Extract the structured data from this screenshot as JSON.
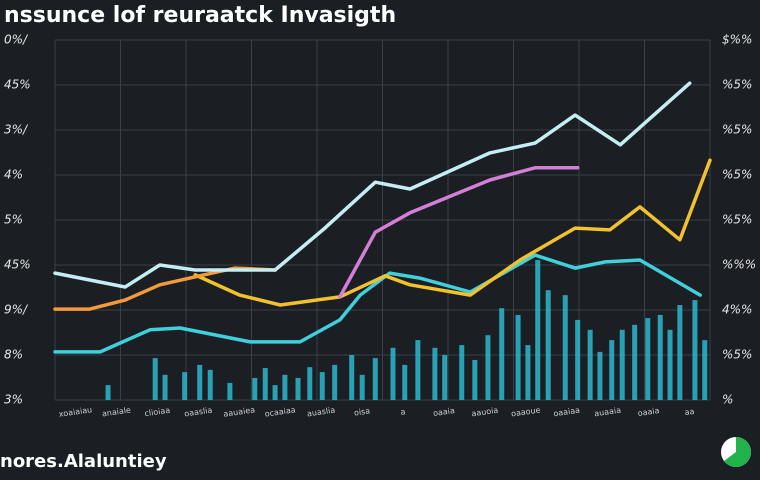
{
  "chart_data": {
    "type": "line",
    "title": "nssunce lof reuraatck Invasigth",
    "footer": "nores.Alaluntiey",
    "xlim": [
      0,
      100
    ],
    "ylim": [
      0,
      80
    ],
    "xticks": [
      0,
      10,
      20,
      30,
      40,
      50,
      60,
      70,
      80,
      90,
      100
    ],
    "yticks": [
      0,
      10,
      20,
      30,
      40,
      50,
      60,
      70,
      80
    ],
    "grid": true,
    "y_axis_labels": [
      "3%",
      "8%",
      "9%/",
      "45%",
      "5%",
      "4%",
      "3%/",
      "45%",
      "0%/"
    ],
    "y2_axis_labels": [
      "%",
      "%5%",
      "4%%",
      "%%%",
      "%5%",
      "%5%",
      "%5%",
      "%5%",
      "$%%"
    ],
    "x_axis_labels": [
      "xoaiaiau",
      "anaiale",
      "clioiaa",
      "oaaslia",
      "aauaiea",
      "ocaaiaa",
      "auaslia",
      "oisa",
      "a",
      "oaaia",
      "aauoia",
      "oaaoue",
      "oaaiaa",
      "auaaia",
      "oaaia",
      "aa"
    ],
    "series": [
      {
        "type": "bar",
        "color": "#2bb8cf",
        "x": [
          8.1,
          15.3,
          16.8,
          19.8,
          22.1,
          23.7,
          26.7,
          30.5,
          32.1,
          33.6,
          35.1,
          37.1,
          38.9,
          40.8,
          42.7,
          45.3,
          46.9,
          48.9,
          51.6,
          53.4,
          55.4,
          58.0,
          59.5,
          62.1,
          64.1,
          66.1,
          68.2,
          70.7,
          72.2,
          73.7,
          75.3,
          77.9,
          79.8,
          81.7,
          83.2,
          85.0,
          86.6,
          88.5,
          90.5,
          92.4,
          93.9,
          95.4,
          97.7,
          99.2
        ],
        "values": [
          3.3,
          9.3,
          5.6,
          6.2,
          7.8,
          6.7,
          3.8,
          4.9,
          7.1,
          3.3,
          5.6,
          4.9,
          7.3,
          6.2,
          7.8,
          10,
          5.6,
          9.3,
          11.6,
          7.8,
          13.3,
          11.6,
          10,
          12.2,
          8.9,
          14.4,
          20.4,
          18.9,
          12.2,
          31.1,
          24.4,
          23.3,
          17.8,
          15.6,
          10.7,
          13.3,
          15.6,
          16.7,
          18.2,
          18.9,
          15.6,
          21.1,
          22.2,
          13.3
        ]
      },
      {
        "type": "line",
        "color": "#3fd0dc",
        "x": [
          0,
          6.9,
          14.5,
          19.1,
          29.8,
          37.4,
          43.5,
          46.6,
          51.1,
          55.7,
          63.4,
          73.3,
          79.4,
          84,
          89.3,
          98.5
        ],
        "values": [
          10.7,
          10.7,
          15.6,
          16.0,
          12.9,
          12.9,
          17.8,
          23.3,
          28.2,
          27.1,
          24.0,
          32.2,
          29.3,
          30.7,
          31.1,
          23.3
        ]
      },
      {
        "type": "line",
        "color": "#f2c12e",
        "x": [
          21.4,
          28.2,
          34.4,
          43.5,
          50.4,
          54.2,
          63.4,
          71,
          79.4,
          84.7,
          89.3,
          95.4,
          100
        ],
        "values": [
          27.8,
          23.3,
          21.1,
          22.9,
          27.6,
          25.6,
          23.3,
          31.1,
          38.2,
          37.8,
          42.9,
          35.6,
          53.3
        ]
      },
      {
        "type": "line",
        "color": "#f39a3a",
        "x": [
          0,
          5.3,
          10.7,
          16,
          22.1,
          27.5,
          33.6
        ],
        "values": [
          20.2,
          20.2,
          22.2,
          25.6,
          27.6,
          29.3,
          28.9
        ]
      },
      {
        "type": "line",
        "color": "#d47fd6",
        "x": [
          43.5,
          48.9,
          54.2,
          66.4,
          73.3,
          79.8
        ],
        "values": [
          22.9,
          37.3,
          41.6,
          48.9,
          51.6,
          51.6
        ]
      },
      {
        "type": "line",
        "color": "#c4eef4",
        "x": [
          0,
          10.7,
          16,
          21.4,
          33.6,
          41.2,
          48.9,
          54.2,
          66.4,
          73.3,
          79.4,
          86.3,
          96.9
        ],
        "values": [
          28.2,
          25.1,
          30.0,
          28.9,
          28.9,
          38.2,
          48.4,
          46.9,
          54.9,
          57.1,
          63.3,
          56.7,
          70.4
        ]
      }
    ]
  }
}
